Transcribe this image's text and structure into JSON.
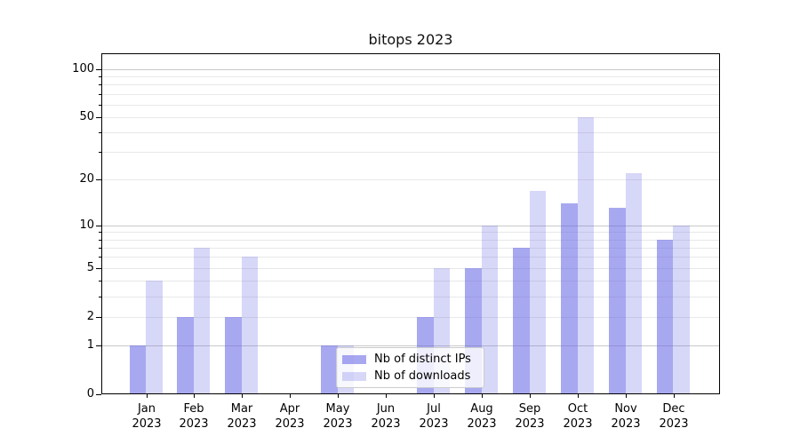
{
  "chart_data": {
    "type": "bar",
    "title": "bitops 2023",
    "categories": [
      "Jan",
      "Feb",
      "Mar",
      "Apr",
      "May",
      "Jun",
      "Jul",
      "Aug",
      "Sep",
      "Oct",
      "Nov",
      "Dec"
    ],
    "x_tick_year": "2023",
    "series": [
      {
        "name": "Nb of distinct IPs",
        "values": [
          1,
          2,
          2,
          0,
          1,
          0,
          2,
          5,
          7,
          14,
          13,
          8
        ],
        "color": "rgba(97,97,228,0.55)"
      },
      {
        "name": "Nb of downloads",
        "values": [
          4,
          7,
          6,
          0,
          1,
          0,
          5,
          10,
          17,
          50,
          22,
          10
        ],
        "color": "rgba(97,97,228,0.25)"
      }
    ],
    "yscale": "log1p",
    "ylim": [
      0,
      125
    ],
    "y_ticks": [
      0,
      1,
      2,
      5,
      10,
      20,
      50,
      100
    ],
    "y_major_gridlines": [
      1,
      10,
      100
    ],
    "y_minor_gridlines": [
      2,
      3,
      4,
      5,
      6,
      7,
      8,
      9,
      20,
      30,
      40,
      50,
      60,
      70,
      80,
      90
    ],
    "grid": "both",
    "legend_position": "lower center"
  },
  "colors": {
    "grid_major": "#c9c9c9",
    "grid_minor": "#e8e8e8",
    "spine": "#000000",
    "legend_border": "#cccccc"
  }
}
